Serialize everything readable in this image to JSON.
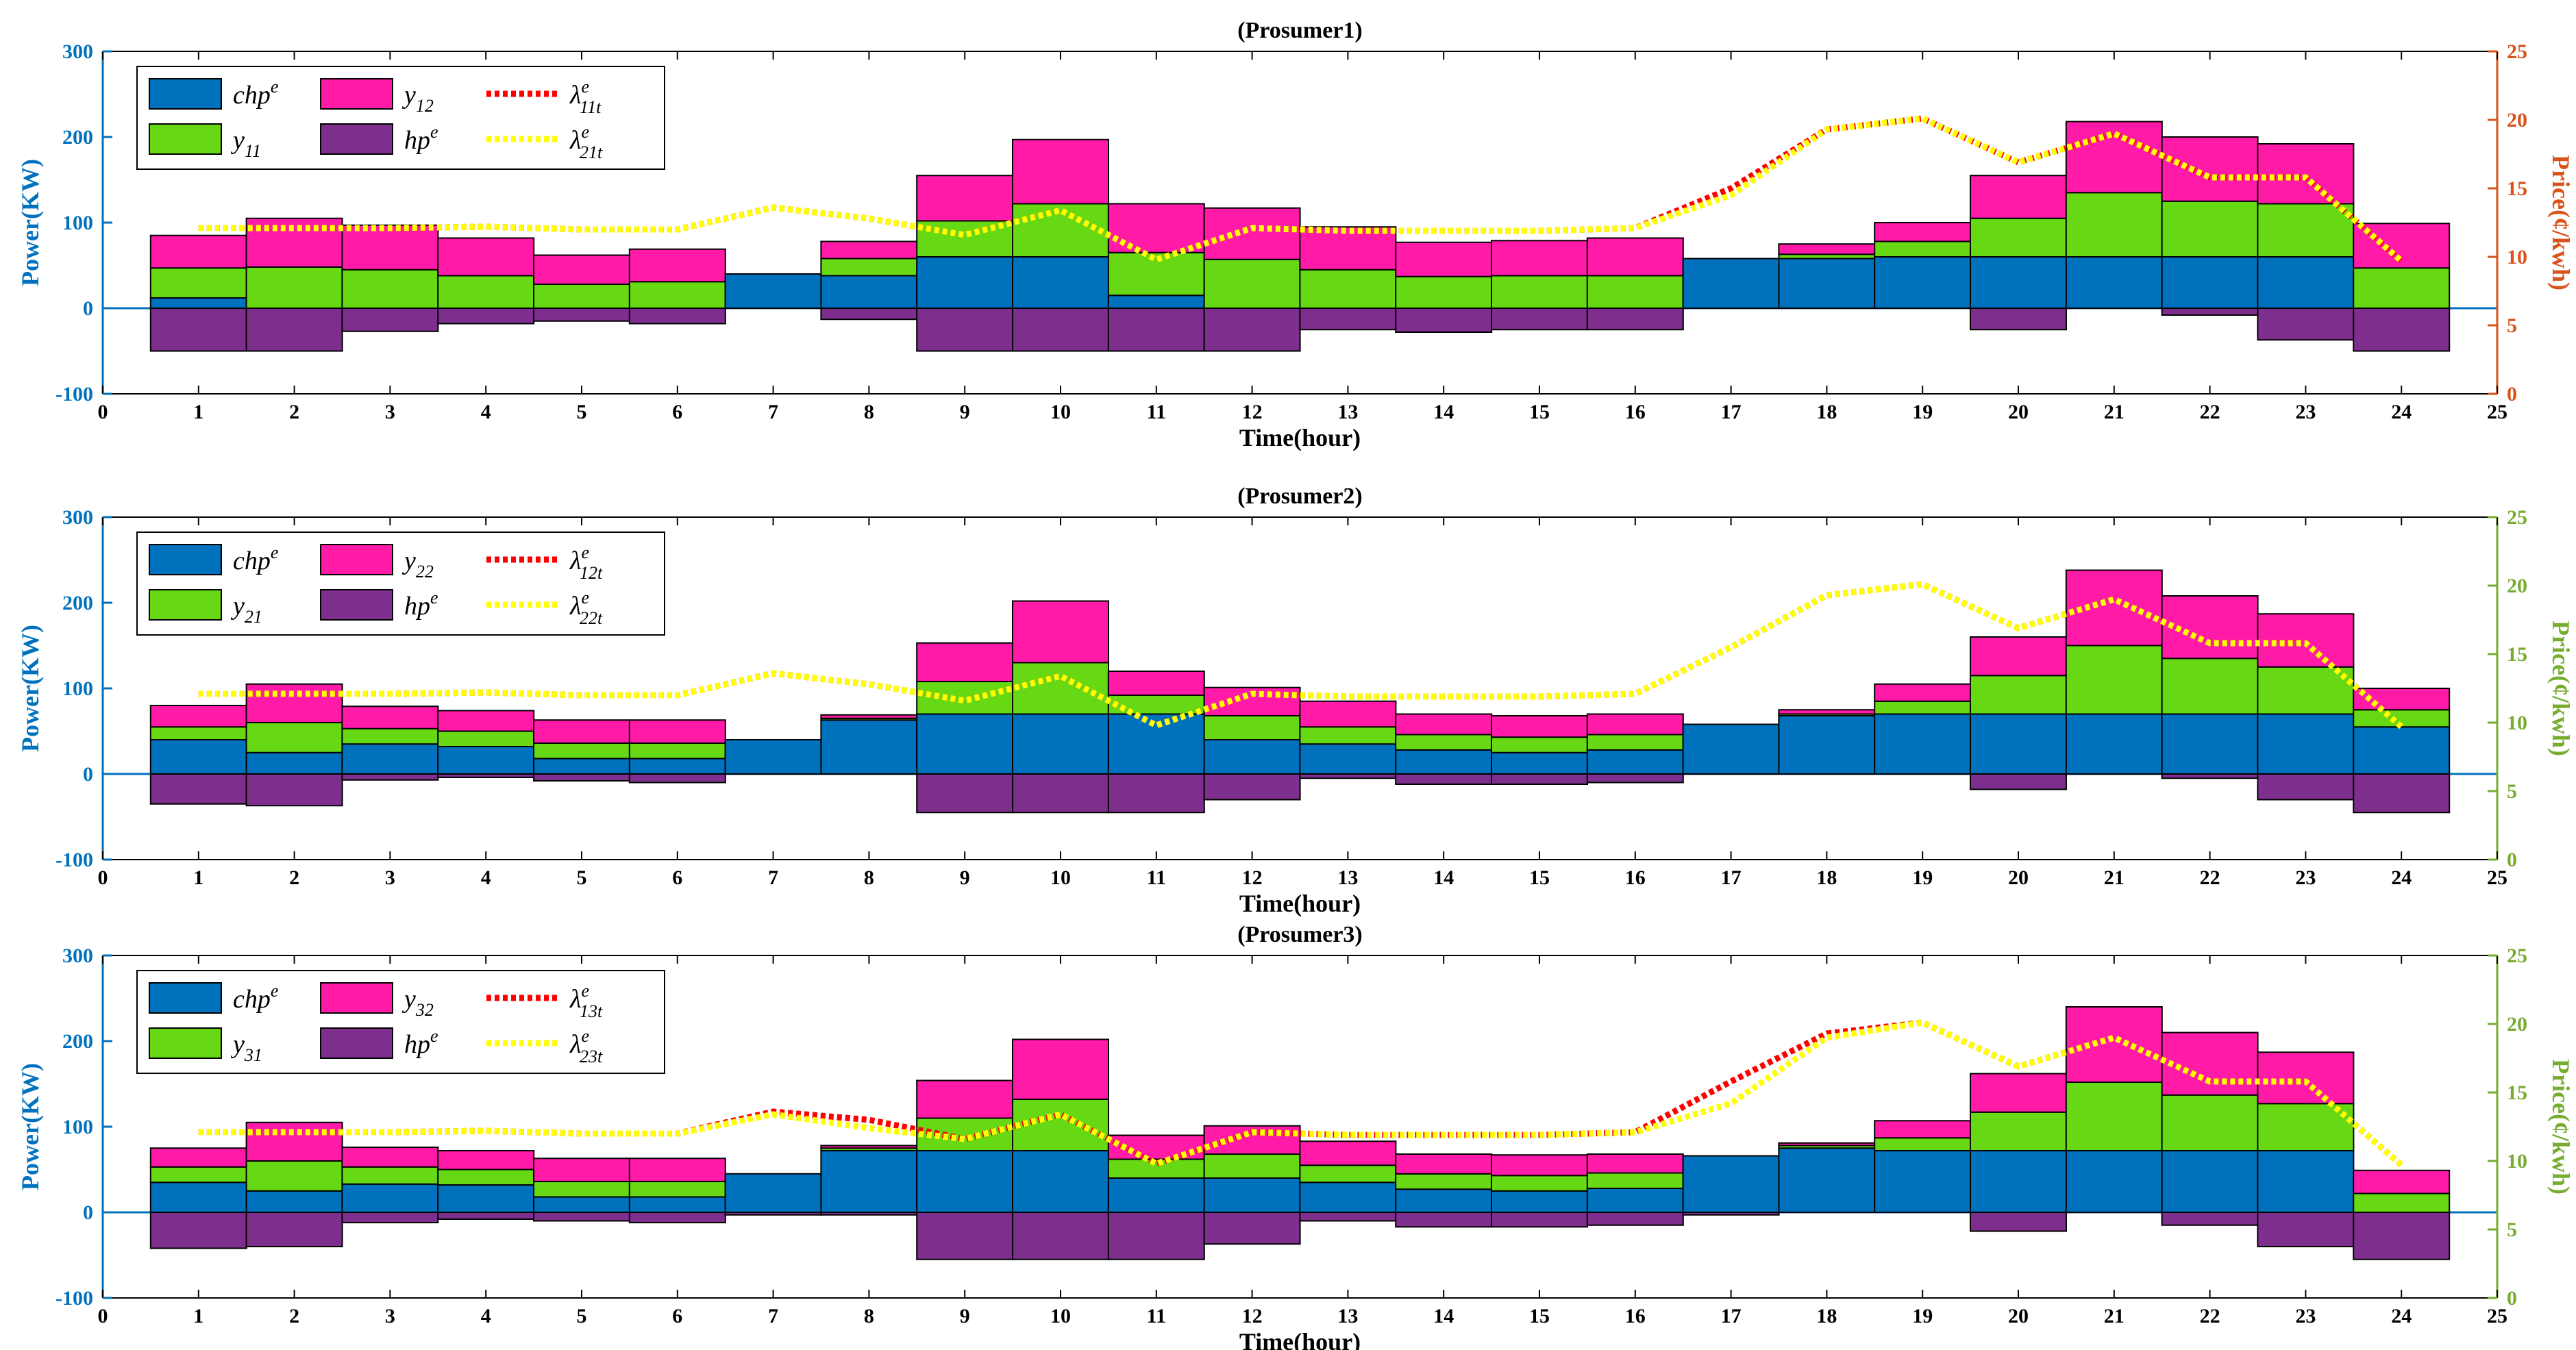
{
  "chart_data": [
    {
      "type": "bar",
      "title": "(Prosumer1)",
      "xlabel": "Time(hour)",
      "ylabel": "Power(KW)",
      "y2label": "Price(¢/kwh)",
      "xlim": [
        0,
        25
      ],
      "ylim": [
        -100,
        300
      ],
      "y2lim": [
        0,
        25
      ],
      "xticks": [
        0,
        1,
        2,
        3,
        4,
        5,
        6,
        7,
        8,
        9,
        10,
        11,
        12,
        13,
        14,
        15,
        16,
        17,
        18,
        19,
        20,
        21,
        22,
        23,
        24,
        25
      ],
      "yticks": [
        -100,
        0,
        100,
        200,
        300
      ],
      "y2ticks": [
        0,
        5,
        10,
        15,
        20,
        25
      ],
      "y2color": "#d95319",
      "legend_position": "top-left",
      "x": [
        1,
        2,
        3,
        4,
        5,
        6,
        7,
        8,
        9,
        10,
        11,
        12,
        13,
        14,
        15,
        16,
        17,
        18,
        19,
        20,
        21,
        22,
        23,
        24
      ],
      "stacked_series": [
        {
          "key": "chp",
          "legend": {
            "base": "chp",
            "sup": "e",
            "sub": ""
          },
          "color": "#0072bd",
          "values": [
            12,
            0,
            0,
            0,
            0,
            0,
            40,
            38,
            60,
            60,
            15,
            0,
            0,
            0,
            0,
            0,
            58,
            58,
            60,
            60,
            60,
            60,
            60,
            0
          ]
        },
        {
          "key": "y_own",
          "legend": {
            "base": "y",
            "sup": "",
            "sub": "11"
          },
          "color": "#66d814",
          "values": [
            35,
            48,
            45,
            38,
            28,
            31,
            0,
            20,
            42,
            62,
            50,
            57,
            45,
            37,
            38,
            38,
            0,
            5,
            18,
            45,
            75,
            65,
            62,
            47
          ]
        },
        {
          "key": "y_other",
          "legend": {
            "base": "y",
            "sup": "",
            "sub": "12"
          },
          "color": "#ff1aa8",
          "values": [
            38,
            57,
            52,
            44,
            34,
            38,
            0,
            20,
            53,
            75,
            57,
            60,
            50,
            40,
            41,
            44,
            0,
            12,
            22,
            50,
            83,
            75,
            70,
            52
          ]
        }
      ],
      "negative_series": [
        {
          "key": "hp",
          "legend": {
            "base": "hp",
            "sup": "e",
            "sub": ""
          },
          "color": "#7e2f8e",
          "values": [
            -50,
            -50,
            -27,
            -18,
            -15,
            -18,
            0,
            -13,
            -50,
            -50,
            -50,
            -50,
            -25,
            -28,
            -25,
            -25,
            0,
            0,
            0,
            -25,
            0,
            -8,
            -37,
            -50
          ]
        }
      ],
      "line_series": [
        {
          "key": "lambda1",
          "legend": {
            "base": "λ",
            "sup": "e",
            "sub": "11t"
          },
          "color": "#ff0000",
          "dash": "red",
          "values": [
            12.1,
            12.1,
            12.1,
            12.2,
            12.0,
            12.0,
            13.6,
            12.8,
            11.6,
            13.4,
            9.8,
            12.1,
            11.9,
            11.9,
            11.9,
            12.1,
            15.0,
            19.3,
            20.1,
            16.9,
            19.0,
            15.8,
            15.8,
            9.7
          ]
        },
        {
          "key": "lambda2",
          "legend": {
            "base": "λ",
            "sup": "e",
            "sub": "21t"
          },
          "color": "#ffff00",
          "dash": "yellow",
          "values": [
            12.1,
            12.1,
            12.1,
            12.2,
            12.0,
            12.0,
            13.6,
            12.8,
            11.6,
            13.4,
            9.8,
            12.1,
            11.9,
            11.9,
            11.9,
            12.1,
            14.5,
            19.3,
            20.1,
            16.9,
            19.0,
            15.8,
            15.8,
            9.7
          ]
        }
      ]
    },
    {
      "type": "bar",
      "title": "(Prosumer2)",
      "xlabel": "Time(hour)",
      "ylabel": "Power(KW)",
      "y2label": "Price(¢/kwh)",
      "xlim": [
        0,
        25
      ],
      "ylim": [
        -100,
        300
      ],
      "y2lim": [
        0,
        25
      ],
      "xticks": [
        0,
        1,
        2,
        3,
        4,
        5,
        6,
        7,
        8,
        9,
        10,
        11,
        12,
        13,
        14,
        15,
        16,
        17,
        18,
        19,
        20,
        21,
        22,
        23,
        24,
        25
      ],
      "yticks": [
        -100,
        0,
        100,
        200,
        300
      ],
      "y2ticks": [
        0,
        5,
        10,
        15,
        20,
        25
      ],
      "y2color": "#77ac30",
      "legend_position": "top-left",
      "x": [
        1,
        2,
        3,
        4,
        5,
        6,
        7,
        8,
        9,
        10,
        11,
        12,
        13,
        14,
        15,
        16,
        17,
        18,
        19,
        20,
        21,
        22,
        23,
        24
      ],
      "stacked_series": [
        {
          "key": "chp",
          "legend": {
            "base": "chp",
            "sup": "e",
            "sub": ""
          },
          "color": "#0072bd",
          "values": [
            40,
            25,
            35,
            32,
            18,
            18,
            40,
            63,
            70,
            70,
            70,
            40,
            35,
            28,
            25,
            28,
            58,
            68,
            70,
            70,
            70,
            70,
            70,
            55
          ]
        },
        {
          "key": "y_own",
          "legend": {
            "base": "y",
            "sup": "",
            "sub": "21"
          },
          "color": "#66d814",
          "values": [
            15,
            35,
            18,
            18,
            18,
            18,
            0,
            2,
            38,
            60,
            22,
            28,
            20,
            18,
            18,
            18,
            0,
            2,
            15,
            45,
            80,
            65,
            55,
            20
          ]
        },
        {
          "key": "y_other",
          "legend": {
            "base": "y",
            "sup": "",
            "sub": "22"
          },
          "color": "#ff1aa8",
          "values": [
            25,
            45,
            26,
            24,
            27,
            27,
            0,
            4,
            45,
            72,
            28,
            33,
            30,
            24,
            25,
            24,
            0,
            5,
            20,
            45,
            88,
            73,
            62,
            25
          ]
        }
      ],
      "negative_series": [
        {
          "key": "hp",
          "legend": {
            "base": "hp",
            "sup": "e",
            "sub": ""
          },
          "color": "#7e2f8e",
          "values": [
            -35,
            -37,
            -7,
            -4,
            -8,
            -10,
            0,
            0,
            -45,
            -45,
            -45,
            -30,
            -5,
            -12,
            -12,
            -10,
            0,
            0,
            0,
            -18,
            0,
            -5,
            -30,
            -45
          ]
        }
      ],
      "line_series": [
        {
          "key": "lambda1",
          "legend": {
            "base": "λ",
            "sup": "e",
            "sub": "12t"
          },
          "color": "#ff0000",
          "dash": "red",
          "values": [
            12.1,
            12.1,
            12.1,
            12.2,
            12.0,
            12.0,
            13.6,
            12.8,
            11.6,
            13.4,
            9.8,
            12.1,
            11.9,
            11.9,
            11.9,
            12.1,
            15.5,
            19.3,
            20.1,
            16.9,
            19.0,
            15.8,
            15.8,
            9.7
          ]
        },
        {
          "key": "lambda2",
          "legend": {
            "base": "λ",
            "sup": "e",
            "sub": "22t"
          },
          "color": "#ffff00",
          "dash": "yellow",
          "values": [
            12.1,
            12.1,
            12.1,
            12.2,
            12.0,
            12.0,
            13.6,
            12.8,
            11.6,
            13.4,
            9.8,
            12.1,
            11.9,
            11.9,
            11.9,
            12.1,
            15.5,
            19.3,
            20.1,
            16.9,
            19.0,
            15.8,
            15.8,
            9.7
          ]
        }
      ]
    },
    {
      "type": "bar",
      "title": "(Prosumer3)",
      "xlabel": "Time(hour)",
      "ylabel": "Power(KW)",
      "y2label": "Price(¢/kwh)",
      "xlim": [
        0,
        25
      ],
      "ylim": [
        -100,
        300
      ],
      "y2lim": [
        0,
        25
      ],
      "xticks": [
        0,
        1,
        2,
        3,
        4,
        5,
        6,
        7,
        8,
        9,
        10,
        11,
        12,
        13,
        14,
        15,
        16,
        17,
        18,
        19,
        20,
        21,
        22,
        23,
        24,
        25
      ],
      "yticks": [
        -100,
        0,
        100,
        200,
        300
      ],
      "y2ticks": [
        0,
        5,
        10,
        15,
        20,
        25
      ],
      "y2color": "#77ac30",
      "legend_position": "top-left",
      "x": [
        1,
        2,
        3,
        4,
        5,
        6,
        7,
        8,
        9,
        10,
        11,
        12,
        13,
        14,
        15,
        16,
        17,
        18,
        19,
        20,
        21,
        22,
        23,
        24
      ],
      "stacked_series": [
        {
          "key": "chp",
          "legend": {
            "base": "chp",
            "sup": "e",
            "sub": ""
          },
          "color": "#0072bd",
          "values": [
            35,
            25,
            33,
            32,
            18,
            18,
            45,
            72,
            72,
            72,
            40,
            40,
            35,
            27,
            25,
            28,
            66,
            75,
            72,
            72,
            72,
            72,
            72,
            0
          ]
        },
        {
          "key": "y_own",
          "legend": {
            "base": "y",
            "sup": "",
            "sub": "31"
          },
          "color": "#66d814",
          "values": [
            18,
            35,
            20,
            18,
            18,
            18,
            0,
            3,
            38,
            60,
            22,
            28,
            20,
            18,
            18,
            18,
            0,
            3,
            15,
            45,
            80,
            65,
            55,
            22
          ]
        },
        {
          "key": "y_other",
          "legend": {
            "base": "y",
            "sup": "",
            "sub": "32"
          },
          "color": "#ff1aa8",
          "values": [
            22,
            45,
            23,
            22,
            27,
            27,
            0,
            3,
            44,
            70,
            28,
            33,
            28,
            23,
            24,
            22,
            0,
            3,
            20,
            45,
            88,
            73,
            60,
            27
          ]
        }
      ],
      "negative_series": [
        {
          "key": "hp",
          "legend": {
            "base": "hp",
            "sup": "e",
            "sub": ""
          },
          "color": "#7e2f8e",
          "values": [
            -42,
            -40,
            -12,
            -8,
            -10,
            -12,
            -3,
            -3,
            -55,
            -55,
            -55,
            -37,
            -10,
            -17,
            -17,
            -15,
            -3,
            0,
            0,
            -22,
            0,
            -15,
            -40,
            -55
          ]
        }
      ],
      "line_series": [
        {
          "key": "lambda1",
          "legend": {
            "base": "λ",
            "sup": "e",
            "sub": "13t"
          },
          "color": "#ff0000",
          "dash": "red",
          "values": [
            12.1,
            12.1,
            12.1,
            12.2,
            12.0,
            12.0,
            13.6,
            13.0,
            11.6,
            13.4,
            9.8,
            12.1,
            11.9,
            11.9,
            11.9,
            12.1,
            15.8,
            19.3,
            20.1,
            16.9,
            19.0,
            15.8,
            15.8,
            9.7
          ]
        },
        {
          "key": "lambda2",
          "legend": {
            "base": "λ",
            "sup": "e",
            "sub": "23t"
          },
          "color": "#ffff00",
          "dash": "yellow",
          "values": [
            12.1,
            12.1,
            12.1,
            12.2,
            12.0,
            12.0,
            13.4,
            12.4,
            11.6,
            13.4,
            9.8,
            12.1,
            11.9,
            11.9,
            11.9,
            12.1,
            14.2,
            19.0,
            20.1,
            16.9,
            19.0,
            15.8,
            15.8,
            9.7
          ]
        }
      ]
    }
  ]
}
